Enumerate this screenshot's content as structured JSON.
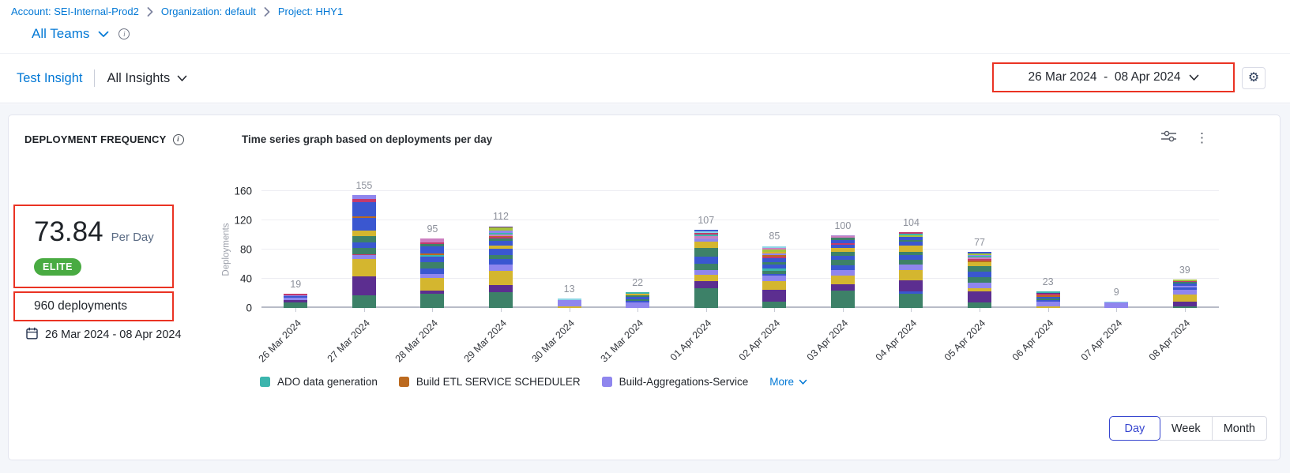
{
  "colors": {
    "link_blue": "#0278d5",
    "annotation_red": "#ea3323",
    "elite_green": "#49ab42",
    "selected_granularity_blue": "#3746cf"
  },
  "breadcrumb": {
    "items": [
      "Account: SEI-Internal-Prod2",
      "Organization: default",
      "Project: HHY1"
    ]
  },
  "team_selector": {
    "label": "All Teams"
  },
  "insight_bar": {
    "insight_name": "Test Insight",
    "scope_label": "All Insights"
  },
  "date_range": {
    "label": "26 Mar 2024  -  08 Apr 2024"
  },
  "widget": {
    "title": "DEPLOYMENT FREQUENCY",
    "metric_value": "73.84",
    "metric_unit": "Per Day",
    "badge": "ELITE",
    "total_label": "960 deployments",
    "period": "26 Mar 2024 - 08 Apr 2024",
    "chart_title": "Time series graph based on deployments per day",
    "legend": [
      {
        "label": "ADO data generation",
        "color": "#3cb5ad"
      },
      {
        "label": "Build ETL SERVICE SCHEDULER",
        "color": "#bc6a1f"
      },
      {
        "label": "Build-Aggregations-Service",
        "color": "#8f86ee"
      }
    ],
    "more_label": "More",
    "granularity": {
      "options": [
        "Day",
        "Week",
        "Month"
      ],
      "selected": "Day"
    }
  },
  "chart_data": {
    "type": "bar",
    "stacked": true,
    "title": "Time series graph based on deployments per day",
    "ylabel": "Deployments",
    "ylim": [
      0,
      160
    ],
    "yticks": [
      0,
      40,
      80,
      120,
      160
    ],
    "grid": true,
    "legend_position": "bottom",
    "categories": [
      "26 Mar 2024",
      "27 Mar 2024",
      "28 Mar 2024",
      "29 Mar 2024",
      "30 Mar 2024",
      "31 Mar 2024",
      "01 Apr 2024",
      "02 Apr 2024",
      "03 Apr 2024",
      "04 Apr 2024",
      "05 Apr 2024",
      "06 Apr 2024",
      "07 Apr 2024",
      "08 Apr 2024"
    ],
    "totals": [
      19,
      155,
      95,
      112,
      13,
      22,
      107,
      85,
      100,
      104,
      77,
      23,
      9,
      39
    ],
    "palette": {
      "green": "#3d8168",
      "darkPurple": "#5c2e90",
      "gold": "#d4b62f",
      "lavender": "#8f86ee",
      "blue": "#3a57d0",
      "teal": "#3cb5ad",
      "orange": "#bc6a1f",
      "crimson": "#c23a6c",
      "lightBlue": "#8ed4e6",
      "lightGreen": "#a6c33c",
      "pink": "#cd7ec0",
      "mauve": "#b08ad2"
    },
    "bars": [
      {
        "segments": [
          [
            "green",
            8
          ],
          [
            "darkPurple",
            3
          ],
          [
            "lavender",
            3
          ],
          [
            "blue",
            2
          ],
          [
            "lavender",
            1
          ],
          [
            "crimson",
            2
          ]
        ]
      },
      {
        "segments": [
          [
            "green",
            17
          ],
          [
            "darkPurple",
            26
          ],
          [
            "gold",
            24
          ],
          [
            "lavender",
            5
          ],
          [
            "crimson",
            2
          ],
          [
            "green",
            8
          ],
          [
            "blue",
            8
          ],
          [
            "green",
            8
          ],
          [
            "gold",
            8
          ],
          [
            "blue",
            17
          ],
          [
            "orange",
            2
          ],
          [
            "blue",
            20
          ],
          [
            "crimson",
            4
          ],
          [
            "lavender",
            6
          ]
        ]
      },
      {
        "segments": [
          [
            "green",
            19
          ],
          [
            "darkPurple",
            5
          ],
          [
            "gold",
            17
          ],
          [
            "lavender",
            6
          ],
          [
            "blue",
            7
          ],
          [
            "green",
            9
          ],
          [
            "blue",
            7
          ],
          [
            "teal",
            3
          ],
          [
            "orange",
            2
          ],
          [
            "blue",
            9
          ],
          [
            "green",
            4
          ],
          [
            "crimson",
            2
          ],
          [
            "pink",
            5
          ]
        ]
      },
      {
        "segments": [
          [
            "green",
            22
          ],
          [
            "darkPurple",
            9
          ],
          [
            "gold",
            20
          ],
          [
            "lavender",
            9
          ],
          [
            "blue",
            7
          ],
          [
            "green",
            5
          ],
          [
            "blue",
            9
          ],
          [
            "gold",
            5
          ],
          [
            "blue",
            6
          ],
          [
            "green",
            3
          ],
          [
            "crimson",
            2
          ],
          [
            "orange",
            2
          ],
          [
            "pink",
            2
          ],
          [
            "teal",
            2
          ],
          [
            "lavender",
            3
          ],
          [
            "lightGreen",
            4
          ],
          [
            "darkPurple",
            2
          ]
        ]
      },
      {
        "segments": [
          [
            "gold",
            2
          ],
          [
            "lavender",
            9
          ],
          [
            "lightBlue",
            2
          ]
        ]
      },
      {
        "segments": [
          [
            "lavender",
            8
          ],
          [
            "blue",
            2
          ],
          [
            "green",
            2
          ],
          [
            "blue",
            3
          ],
          [
            "green",
            2
          ],
          [
            "gold",
            3
          ],
          [
            "teal",
            2
          ]
        ]
      },
      {
        "segments": [
          [
            "green",
            27
          ],
          [
            "darkPurple",
            10
          ],
          [
            "gold",
            8
          ],
          [
            "lavender",
            7
          ],
          [
            "green",
            9
          ],
          [
            "blue",
            9
          ],
          [
            "green",
            12
          ],
          [
            "gold",
            9
          ],
          [
            "lavender",
            3
          ],
          [
            "mauve",
            2
          ],
          [
            "pink",
            2
          ],
          [
            "teal",
            3
          ],
          [
            "crimson",
            2
          ],
          [
            "lightBlue",
            2
          ],
          [
            "blue",
            2
          ]
        ]
      },
      {
        "segments": [
          [
            "green",
            9
          ],
          [
            "darkPurple",
            16
          ],
          [
            "gold",
            12
          ],
          [
            "lavender",
            7
          ],
          [
            "blue",
            3
          ],
          [
            "green",
            4
          ],
          [
            "teal",
            3
          ],
          [
            "blue",
            5
          ],
          [
            "green",
            4
          ],
          [
            "blue",
            5
          ],
          [
            "crimson",
            2
          ],
          [
            "orange",
            2
          ],
          [
            "lavender",
            3
          ],
          [
            "gold",
            2
          ],
          [
            "lightGreen",
            3
          ],
          [
            "pink",
            2
          ],
          [
            "lightBlue",
            3
          ]
        ]
      },
      {
        "segments": [
          [
            "green",
            24
          ],
          [
            "darkPurple",
            8
          ],
          [
            "gold",
            12
          ],
          [
            "lavender",
            8
          ],
          [
            "blue",
            6
          ],
          [
            "green",
            8
          ],
          [
            "blue",
            5
          ],
          [
            "green",
            6
          ],
          [
            "gold",
            5
          ],
          [
            "blue",
            5
          ],
          [
            "crimson",
            2
          ],
          [
            "blue",
            4
          ],
          [
            "green",
            3
          ],
          [
            "pink",
            2
          ],
          [
            "mauve",
            2
          ]
        ]
      },
      {
        "segments": [
          [
            "green",
            20
          ],
          [
            "blue",
            3
          ],
          [
            "darkPurple",
            15
          ],
          [
            "gold",
            14
          ],
          [
            "lavender",
            8
          ],
          [
            "green",
            6
          ],
          [
            "blue",
            7
          ],
          [
            "green",
            4
          ],
          [
            "gold",
            8
          ],
          [
            "blue",
            6
          ],
          [
            "green",
            2
          ],
          [
            "blue",
            4
          ],
          [
            "lightGreen",
            3
          ],
          [
            "teal",
            2
          ],
          [
            "crimson",
            2
          ]
        ]
      },
      {
        "segments": [
          [
            "green",
            8
          ],
          [
            "darkPurple",
            15
          ],
          [
            "gold",
            4
          ],
          [
            "lavender",
            8
          ],
          [
            "green",
            7
          ],
          [
            "blue",
            8
          ],
          [
            "green",
            7
          ],
          [
            "gold",
            6
          ],
          [
            "orange",
            2
          ],
          [
            "crimson",
            2
          ],
          [
            "pink",
            2
          ],
          [
            "teal",
            2
          ],
          [
            "lavender",
            2
          ],
          [
            "lightGreen",
            2
          ],
          [
            "blue",
            2
          ]
        ]
      },
      {
        "segments": [
          [
            "gold",
            2
          ],
          [
            "lavender",
            7
          ],
          [
            "blue",
            2
          ],
          [
            "green",
            2
          ],
          [
            "blue",
            2
          ],
          [
            "orange",
            2
          ],
          [
            "crimson",
            2
          ],
          [
            "darkPurple",
            2
          ],
          [
            "teal",
            2
          ]
        ]
      },
      {
        "segments": [
          [
            "lavender",
            8
          ],
          [
            "lightBlue",
            1
          ]
        ]
      },
      {
        "segments": [
          [
            "green",
            2
          ],
          [
            "darkPurple",
            7
          ],
          [
            "gold",
            9
          ],
          [
            "lavender",
            7
          ],
          [
            "blue",
            3
          ],
          [
            "lavender",
            2
          ],
          [
            "blue",
            4
          ],
          [
            "green",
            2
          ],
          [
            "crimson",
            1
          ],
          [
            "lightGreen",
            2
          ]
        ]
      }
    ]
  }
}
